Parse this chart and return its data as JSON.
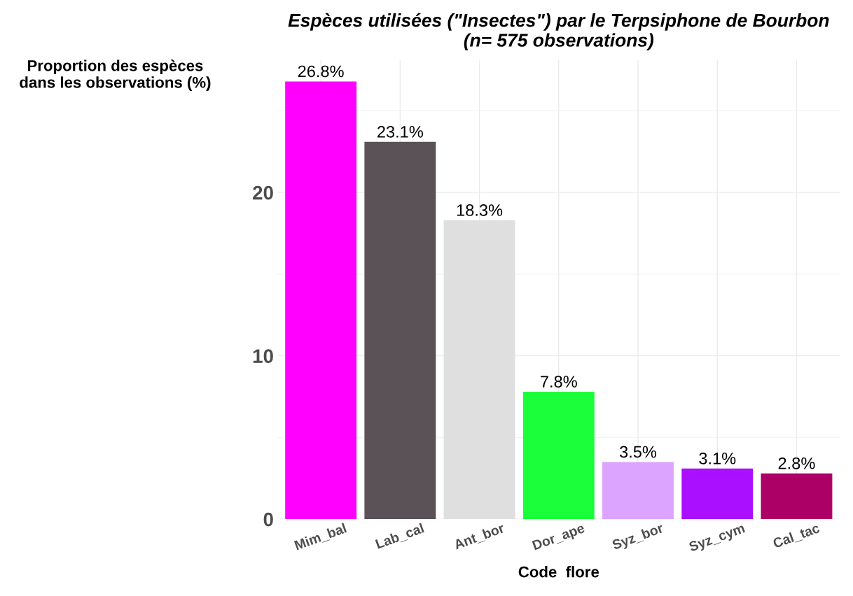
{
  "chart_data": {
    "type": "bar",
    "title": "Espèces utilisées (\"Insectes\") par le Terpsiphone de Bourbon\n(n= 575 observations)",
    "xlabel": "Code  flore",
    "ylabel": "Proportion des espèces\ndans les observations (%)",
    "categories": [
      "Mim_bal",
      "Lab_cal",
      "Ant_bor",
      "Dor_ape",
      "Syz_bor",
      "Syz_cym",
      "Cal_tac"
    ],
    "values": [
      26.8,
      23.1,
      18.3,
      7.8,
      3.5,
      3.1,
      2.8
    ],
    "colors": [
      "#ff00ff",
      "#5a5257",
      "#e0dfe0",
      "#1aff3a",
      "#dca3ff",
      "#aa10ff",
      "#ad0066"
    ],
    "value_labels": [
      "26.8%",
      "23.1%",
      "18.3%",
      "7.8%",
      "3.5%",
      "3.1%",
      "2.8%"
    ],
    "ylim": [
      0,
      28.1
    ],
    "yticks": [
      0,
      10,
      20
    ],
    "grid": true,
    "legend": false
  }
}
